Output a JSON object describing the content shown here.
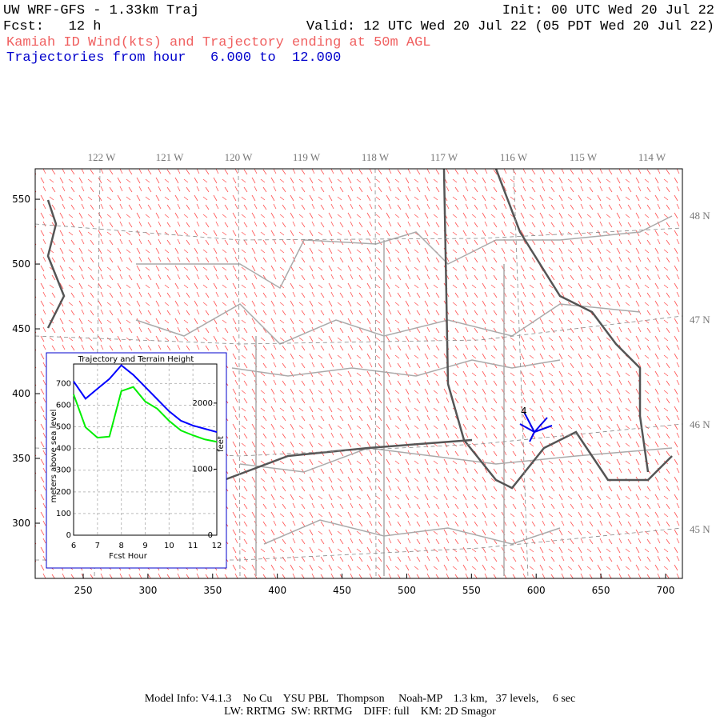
{
  "header": {
    "title": "UW WRF-GFS - 1.33km Traj",
    "init": "Init: 00 UTC Wed 20 Jul 22",
    "fcst": "Fcst:   12 h",
    "valid": "Valid: 12 UTC Wed 20 Jul 22 (05 PDT Wed 20 Jul 22)",
    "subtitle": "Kamiah ID Wind(kts) and Trajectory ending at 50m AGL",
    "hours": "Trajectories from hour   6.000 to  12.000"
  },
  "map": {
    "xlim": [
      212.9,
      713
    ],
    "ylim": [
      257.4,
      573.5
    ],
    "xticks": [
      250,
      300,
      350,
      400,
      450,
      500,
      550,
      600,
      650,
      700
    ],
    "yticks": [
      300,
      350,
      400,
      450,
      500,
      550
    ],
    "lon_labels": [
      "122 W",
      "121 W",
      "120 W",
      "119 W",
      "118 W",
      "117 W",
      "116 W",
      "115 W",
      "114 W"
    ],
    "lat_labels": [
      "48 N",
      "47 N",
      "46 N",
      "45 N"
    ],
    "trajectory_label": "4"
  },
  "chart_data": {
    "type": "line",
    "title": "Trajectory and Terrain Height",
    "xlabel": "Fcst Hour",
    "ylabel": "meters above sea level",
    "y2label": "feet",
    "x": [
      6,
      6.5,
      7,
      7.5,
      8,
      8.5,
      9,
      9.5,
      10,
      10.5,
      11,
      11.5,
      12
    ],
    "series": [
      {
        "color": "#0000ff",
        "values": [
          710,
          630,
          676,
          721,
          784,
          740,
          684,
          628,
          572,
          528,
          506,
          491,
          476
        ]
      },
      {
        "color": "#00ee00",
        "values": [
          650,
          498,
          450,
          455,
          665,
          684,
          617,
          584,
          528,
          483,
          461,
          442,
          431
        ]
      }
    ],
    "xlim": [
      6,
      12
    ],
    "xticks": [
      6,
      7,
      8,
      9,
      10,
      11,
      12
    ],
    "ylim": [
      0,
      790
    ],
    "yticks": [
      0,
      100,
      200,
      300,
      400,
      500,
      600,
      700
    ],
    "y2lim": [
      0,
      2592
    ],
    "y2ticks": [
      0,
      1000,
      2000
    ],
    "grid": true
  },
  "footer": {
    "line1": "Model Info: V4.1.3    No Cu    YSU PBL   Thompson     Noah-MP    1.3 km,   37 levels,     6 sec",
    "line2": "LW: RRTMG  SW: RRTMG    DIFF: full    KM: 2D Smagor"
  }
}
